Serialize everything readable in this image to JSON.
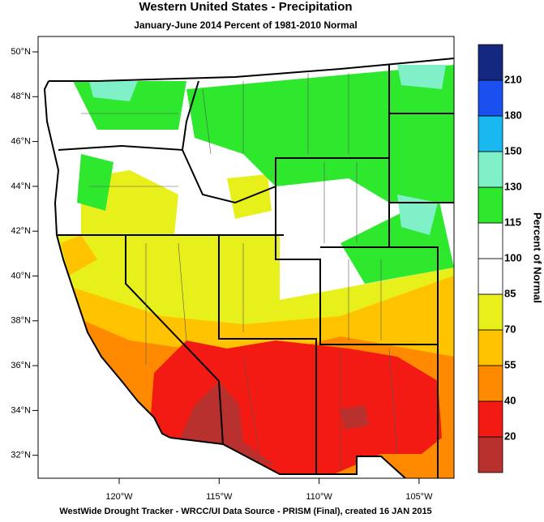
{
  "title": "Western United States - Precipitation",
  "subtitle": "January-June 2014  Percent of 1981-2010 Normal",
  "footer": "WestWide Drought Tracker - WRCC/UI  Data Source - PRISM (Final), created 16 JAN 2015",
  "lat_labels": [
    "50°N",
    "48°N",
    "46°N",
    "44°N",
    "42°N",
    "40°N",
    "38°N",
    "36°N",
    "34°N",
    "32°N"
  ],
  "lon_labels": [
    "120°W",
    "115°W",
    "110°W",
    "105°W"
  ],
  "legend": {
    "title": "Percent of Normal",
    "levels": [
      20,
      40,
      55,
      70,
      85,
      100,
      115,
      130,
      150,
      180,
      210
    ],
    "colors": [
      "#b8312f",
      "#f21a12",
      "#ff8a00",
      "#ffc300",
      "#e8f01c",
      "#ffffff",
      "#ffffff",
      "#2ee82e",
      "#80f0c8",
      "#1ab8f0",
      "#1a50f0",
      "#142880"
    ]
  }
}
